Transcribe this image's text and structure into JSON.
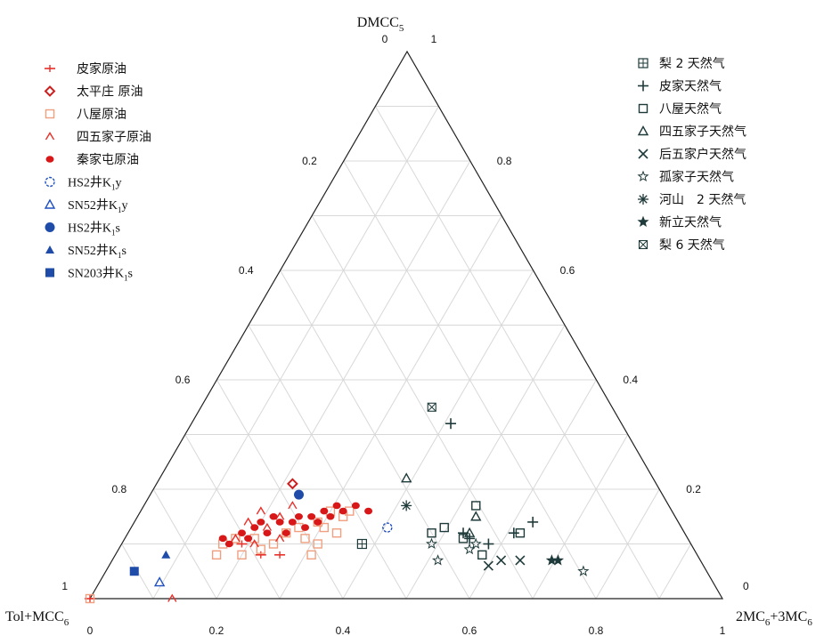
{
  "chart_data": {
    "type": "scatter",
    "subtype": "ternary",
    "axes": {
      "top": "DMCC5",
      "left": "Tol+MCC6",
      "right": "2MC6+3MC6"
    },
    "axis_labels": {
      "top": {
        "text": "DMCC",
        "sub": "5"
      },
      "left": {
        "text": "Tol+MCC",
        "sub": "6"
      },
      "right": {
        "text": "2MC",
        "sub": "6",
        "text2": "+3MC",
        "sub2": "6"
      }
    },
    "ticks": {
      "bottom": [
        "0",
        "0.2",
        "0.4",
        "0.6",
        "0.8",
        "1"
      ],
      "left": [
        "0.2",
        "0.4",
        "0.6",
        "0.8",
        "1"
      ],
      "right": [
        "0.8",
        "0.6",
        "0.4",
        "0.2",
        "0"
      ],
      "top_left": "0",
      "top_right": "1"
    },
    "grid": true,
    "grid_step": 0.1,
    "legend_left": [
      {
        "key": "pijia_oil",
        "label": "皮家原油",
        "marker": "dash",
        "color": "#e8302a"
      },
      {
        "key": "taipingzhuang_oil",
        "label": "太平庄 原油",
        "marker": "diamond-open",
        "color": "#cc2020"
      },
      {
        "key": "bawu_oil",
        "label": "八屋原油",
        "marker": "square-open",
        "color": "#f0a080"
      },
      {
        "key": "siwujiazi_oil",
        "label": "四五家子原油",
        "marker": "caret-open",
        "color": "#e8302a"
      },
      {
        "key": "qinjiatun_oil",
        "label": "秦家屯原油",
        "marker": "blob",
        "color": "#d81818"
      },
      {
        "key": "hs2_k1y",
        "label": "HS2井K",
        "sub": "1",
        "tail": "y",
        "marker": "circle-dashed",
        "color": "#2050c0"
      },
      {
        "key": "sn52_k1y",
        "label": "SN52井K",
        "sub": "1",
        "tail": "y",
        "marker": "triangle-open",
        "color": "#2050c0"
      },
      {
        "key": "hs2_k1s",
        "label": "HS2井K",
        "sub": "1",
        "tail": "s",
        "marker": "circle-filled",
        "color": "#1e4ca8"
      },
      {
        "key": "sn52_k1s",
        "label": "SN52井K",
        "sub": "1",
        "tail": "s",
        "marker": "triangle-filled",
        "color": "#1e4ca8"
      },
      {
        "key": "sn203_k1s",
        "label": "SN203井K",
        "sub": "1",
        "tail": "s",
        "marker": "square-filled",
        "color": "#1e4ca8"
      }
    ],
    "legend_right": [
      {
        "key": "li2_gas",
        "label": "梨 2 天然气",
        "marker": "square-plus",
        "color": "#1f3a3a"
      },
      {
        "key": "pijia_gas",
        "label": "皮家天然气",
        "marker": "plus",
        "color": "#1f3a3a"
      },
      {
        "key": "bawu_gas",
        "label": "八屋天然气",
        "marker": "square-open",
        "color": "#1f3a3a"
      },
      {
        "key": "siwujiazi_gas",
        "label": "四五家子天然气",
        "marker": "triangle-open",
        "color": "#1f3a3a"
      },
      {
        "key": "houwujiahu_gas",
        "label": "后五家户天然气",
        "marker": "x",
        "color": "#1f3a3a"
      },
      {
        "key": "gujiazi_gas",
        "label": "孤家子天然气",
        "marker": "star-open",
        "color": "#1f3a3a"
      },
      {
        "key": "heshan2_gas",
        "label": "河山　2 天然气",
        "marker": "asterisk",
        "color": "#1f3a3a"
      },
      {
        "key": "xinli_gas",
        "label": "新立天然气",
        "marker": "star-filled",
        "color": "#1f3a3a"
      },
      {
        "key": "li6_gas",
        "label": "梨 6 天然气",
        "marker": "square-x",
        "color": "#1f3a3a"
      }
    ],
    "points": {
      "pijia_oil": [
        [
          0.0,
          0.0
        ],
        [
          0.24,
          0.1
        ],
        [
          0.27,
          0.08
        ],
        [
          0.3,
          0.08
        ]
      ],
      "taipingzhuang_oil": [
        [
          0.32,
          0.21
        ]
      ],
      "bawu_oil": [
        [
          0.0,
          0.0
        ],
        [
          0.2,
          0.08
        ],
        [
          0.21,
          0.1
        ],
        [
          0.23,
          0.11
        ],
        [
          0.24,
          0.08
        ],
        [
          0.26,
          0.11
        ],
        [
          0.27,
          0.09
        ],
        [
          0.29,
          0.1
        ],
        [
          0.31,
          0.12
        ],
        [
          0.33,
          0.13
        ],
        [
          0.34,
          0.11
        ],
        [
          0.36,
          0.14
        ],
        [
          0.37,
          0.13
        ],
        [
          0.38,
          0.16
        ],
        [
          0.4,
          0.15
        ],
        [
          0.41,
          0.16
        ],
        [
          0.39,
          0.12
        ],
        [
          0.36,
          0.1
        ],
        [
          0.35,
          0.08
        ]
      ],
      "siwujiazi_oil": [
        [
          0.13,
          0.0
        ],
        [
          0.25,
          0.14
        ],
        [
          0.27,
          0.16
        ],
        [
          0.28,
          0.13
        ],
        [
          0.3,
          0.15
        ],
        [
          0.3,
          0.11
        ],
        [
          0.32,
          0.17
        ],
        [
          0.23,
          0.11
        ],
        [
          0.26,
          0.1
        ]
      ],
      "qinjiatun_oil": [
        [
          0.21,
          0.11
        ],
        [
          0.22,
          0.1
        ],
        [
          0.24,
          0.12
        ],
        [
          0.25,
          0.11
        ],
        [
          0.26,
          0.13
        ],
        [
          0.27,
          0.14
        ],
        [
          0.28,
          0.12
        ],
        [
          0.29,
          0.15
        ],
        [
          0.3,
          0.14
        ],
        [
          0.31,
          0.12
        ],
        [
          0.32,
          0.14
        ],
        [
          0.33,
          0.15
        ],
        [
          0.34,
          0.13
        ],
        [
          0.35,
          0.15
        ],
        [
          0.36,
          0.14
        ],
        [
          0.37,
          0.16
        ],
        [
          0.38,
          0.15
        ],
        [
          0.39,
          0.17
        ],
        [
          0.4,
          0.16
        ],
        [
          0.42,
          0.17
        ],
        [
          0.44,
          0.16
        ]
      ],
      "hs2_k1y": [
        [
          0.47,
          0.13
        ]
      ],
      "sn52_k1y": [
        [
          0.11,
          0.03
        ]
      ],
      "hs2_k1s": [
        [
          0.33,
          0.19
        ]
      ],
      "sn52_k1s": [
        [
          0.12,
          0.08
        ]
      ],
      "sn203_k1s": [
        [
          0.07,
          0.05
        ]
      ],
      "li2_gas": [
        [
          0.43,
          0.1
        ]
      ],
      "pijia_gas": [
        [
          0.57,
          0.32
        ],
        [
          0.59,
          0.12
        ],
        [
          0.63,
          0.1
        ],
        [
          0.67,
          0.12
        ],
        [
          0.7,
          0.14
        ],
        [
          0.6,
          0.11
        ]
      ],
      "bawu_gas": [
        [
          0.61,
          0.17
        ],
        [
          0.56,
          0.13
        ],
        [
          0.54,
          0.12
        ],
        [
          0.59,
          0.11
        ],
        [
          0.62,
          0.08
        ],
        [
          0.68,
          0.12
        ]
      ],
      "siwujiazi_gas": [
        [
          0.5,
          0.22
        ],
        [
          0.61,
          0.15
        ],
        [
          0.6,
          0.12
        ]
      ],
      "houwujiahu_gas": [
        [
          0.63,
          0.06
        ],
        [
          0.65,
          0.07
        ],
        [
          0.68,
          0.07
        ]
      ],
      "gujiazi_gas": [
        [
          0.54,
          0.1
        ],
        [
          0.55,
          0.07
        ],
        [
          0.6,
          0.09
        ],
        [
          0.61,
          0.1
        ],
        [
          0.78,
          0.05
        ]
      ],
      "heshan2_gas": [
        [
          0.5,
          0.17
        ]
      ],
      "xinli_gas": [
        [
          0.73,
          0.07
        ],
        [
          0.74,
          0.07
        ]
      ],
      "li6_gas": [
        [
          0.54,
          0.35
        ]
      ]
    }
  }
}
